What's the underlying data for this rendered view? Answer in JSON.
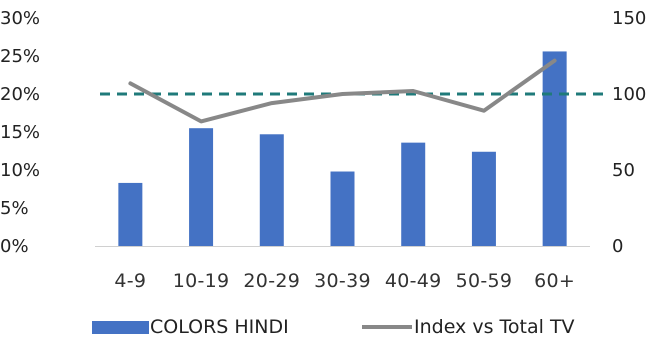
{
  "chart_data": {
    "type": "bar",
    "categories": [
      "4-9",
      "10-19",
      "20-29",
      "30-39",
      "40-49",
      "50-59",
      "60+"
    ],
    "series": [
      {
        "name": "COLORS HINDI",
        "type": "bar",
        "axis": "left",
        "values": [
          8.3,
          15.5,
          14.7,
          9.8,
          13.6,
          12.4,
          25.6
        ],
        "color": "#4472C4"
      },
      {
        "name": "Index vs Total TV",
        "type": "line",
        "axis": "right",
        "values": [
          107,
          82,
          94,
          100,
          102,
          89,
          122
        ],
        "color": "#888888"
      }
    ],
    "reference_line": {
      "axis": "right",
      "value": 100,
      "style": "dashed",
      "color": "#1F7A7A"
    },
    "y_left": {
      "ylim": [
        0,
        30
      ],
      "ticks": [
        "0%",
        "5%",
        "10%",
        "15%",
        "20%",
        "25%",
        "30%"
      ]
    },
    "y_right": {
      "ylim": [
        0,
        150
      ],
      "ticks": [
        "0",
        "50",
        "100",
        "150"
      ]
    },
    "grid": false,
    "legend_position": "bottom"
  }
}
